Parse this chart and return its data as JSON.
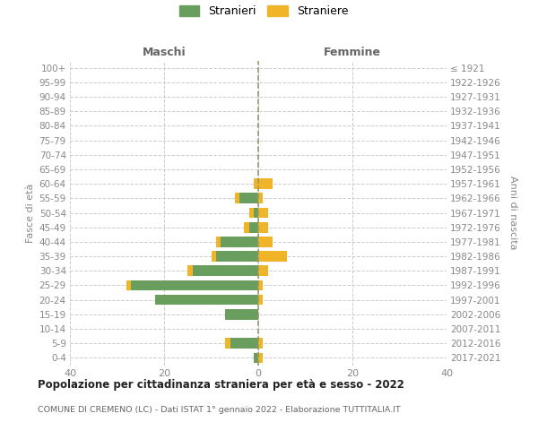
{
  "age_groups": [
    "0-4",
    "5-9",
    "10-14",
    "15-19",
    "20-24",
    "25-29",
    "30-34",
    "35-39",
    "40-44",
    "45-49",
    "50-54",
    "55-59",
    "60-64",
    "65-69",
    "70-74",
    "75-79",
    "80-84",
    "85-89",
    "90-94",
    "95-99",
    "100+"
  ],
  "birth_years": [
    "2017-2021",
    "2012-2016",
    "2007-2011",
    "2002-2006",
    "1997-2001",
    "1992-1996",
    "1987-1991",
    "1982-1986",
    "1977-1981",
    "1972-1976",
    "1967-1971",
    "1962-1966",
    "1957-1961",
    "1952-1956",
    "1947-1951",
    "1942-1946",
    "1937-1941",
    "1932-1936",
    "1927-1931",
    "1922-1926",
    "≤ 1921"
  ],
  "maschi_stranieri": [
    1,
    6,
    0,
    7,
    22,
    27,
    14,
    9,
    8,
    2,
    1,
    4,
    0,
    0,
    0,
    0,
    0,
    0,
    0,
    0,
    0
  ],
  "maschi_straniere": [
    0,
    1,
    0,
    0,
    0,
    1,
    1,
    1,
    1,
    1,
    1,
    1,
    1,
    0,
    0,
    0,
    0,
    0,
    0,
    0,
    0
  ],
  "femmine_straniere": [
    1,
    1,
    0,
    0,
    1,
    1,
    2,
    6,
    3,
    2,
    2,
    1,
    3,
    0,
    0,
    0,
    0,
    0,
    0,
    0,
    0
  ],
  "color_stranieri": "#6a9e5e",
  "color_straniere": "#f0b429",
  "title": "Popolazione per cittadinanza straniera per età e sesso - 2022",
  "subtitle": "COMUNE DI CREMENO (LC) - Dati ISTAT 1° gennaio 2022 - Elaborazione TUTTITALIA.IT",
  "xlabel_left": "Maschi",
  "xlabel_right": "Femmine",
  "ylabel_left": "Fasce di età",
  "ylabel_right": "Anni di nascita",
  "xlim": 40,
  "legend_stranieri": "Stranieri",
  "legend_straniere": "Straniere",
  "bg_color": "#ffffff",
  "grid_color": "#cccccc",
  "text_color": "#888888",
  "zero_line_color": "#999966"
}
